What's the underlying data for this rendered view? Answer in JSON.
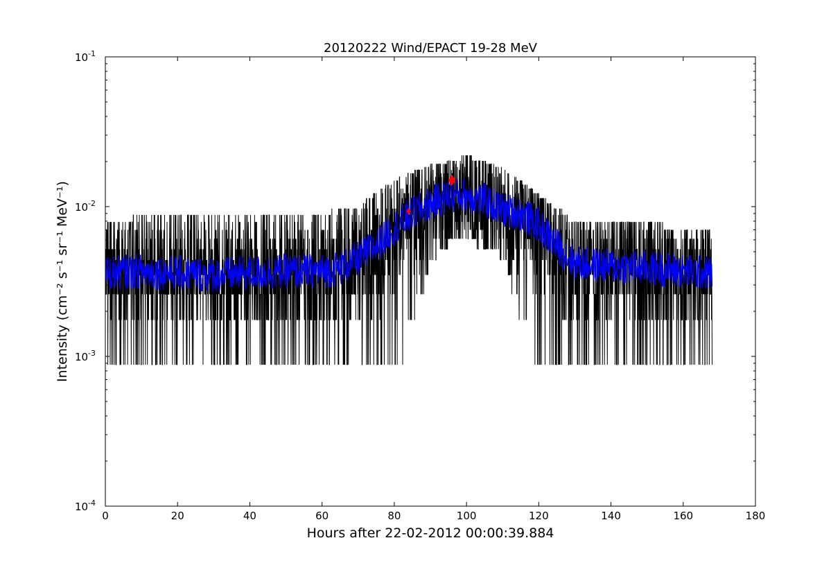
{
  "chart_data": {
    "type": "line",
    "title": "20120222 Wind/EPACT 19-28 MeV",
    "xlabel": "Hours after 22-02-2012 00:00:39.884",
    "ylabel": "Intensity (cm⁻² s⁻¹ sr⁻¹ MeV⁻¹)",
    "xlim": [
      0,
      180
    ],
    "ylim": [
      0.0001,
      0.1
    ],
    "yscale": "log",
    "x_ticks": [
      0,
      20,
      40,
      60,
      80,
      100,
      120,
      140,
      160,
      180
    ],
    "y_ticks": [
      {
        "value": 0.0001,
        "base": "10",
        "exp": "-4"
      },
      {
        "value": 0.001,
        "base": "10",
        "exp": "-3"
      },
      {
        "value": 0.01,
        "base": "10",
        "exp": "-2"
      },
      {
        "value": 0.1,
        "base": "10",
        "exp": "-1"
      }
    ],
    "grid": false,
    "legend": "none",
    "series": [
      {
        "color": "#000000",
        "style": "raw counts, noisy line",
        "data_range_x": [
          0,
          168
        ],
        "envelope": {
          "x": [
            0,
            20,
            40,
            60,
            70,
            80,
            90,
            96,
            100,
            110,
            120,
            130,
            140,
            168
          ],
          "low": [
            0.0009,
            0.0009,
            0.0009,
            0.0009,
            0.0009,
            0.0009,
            0.004,
            0.006,
            0.0062,
            0.0045,
            0.0009,
            0.0009,
            0.0009,
            0.0009
          ],
          "high": [
            0.008,
            0.009,
            0.009,
            0.009,
            0.01,
            0.015,
            0.019,
            0.02,
            0.022,
            0.018,
            0.012,
            0.008,
            0.008,
            0.007
          ]
        }
      },
      {
        "color": "#0000ff",
        "style": "smoothed line",
        "x": [
          0,
          10,
          20,
          30,
          40,
          50,
          60,
          65,
          70,
          75,
          80,
          85,
          90,
          95,
          100,
          105,
          110,
          115,
          120,
          125,
          130,
          140,
          150,
          160,
          168
        ],
        "y": [
          0.0036,
          0.0037,
          0.0036,
          0.0035,
          0.0036,
          0.0037,
          0.0037,
          0.0039,
          0.0045,
          0.0055,
          0.0072,
          0.009,
          0.0105,
          0.0118,
          0.012,
          0.011,
          0.0095,
          0.009,
          0.0075,
          0.0055,
          0.0042,
          0.004,
          0.0039,
          0.0037,
          0.0036
        ]
      }
    ],
    "markers": [
      {
        "x": 84,
        "y": 0.0093,
        "color": "#ff0000",
        "shape": "diamond",
        "size": "small"
      },
      {
        "x": 96,
        "y": 0.015,
        "color": "#ff0000",
        "shape": "diamond",
        "size": "large"
      }
    ]
  }
}
